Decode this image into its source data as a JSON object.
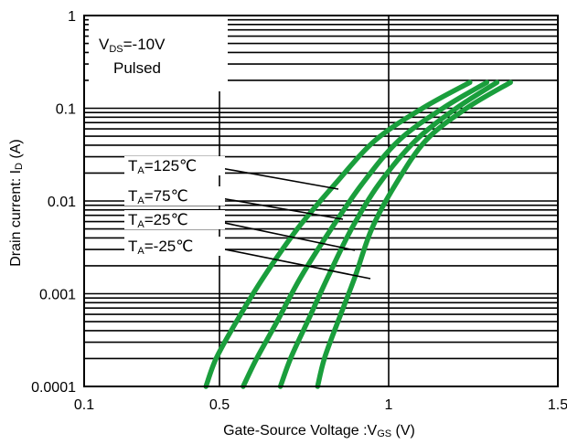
{
  "chart_data": {
    "type": "line",
    "title": "",
    "xlabel": "Gate-Source Voltage :V",
    "xlabel_sub": "GS",
    "xlabel_suffix": " (V)",
    "ylabel": "Drain current: I",
    "ylabel_sub": "D",
    "ylabel_suffix": " (A)",
    "xlim": [
      0.1,
      1.5
    ],
    "ylim": [
      0.0001,
      1
    ],
    "yscale": "log",
    "grid": true,
    "x_ticks": [
      "0.1",
      "0.5",
      "1",
      "1.5"
    ],
    "y_ticks": [
      "0.0001",
      "0.001",
      "0.01",
      "0.1",
      "1"
    ],
    "conditions": [
      {
        "prefix": "V",
        "sub": "DS",
        "text": "=-10V"
      },
      {
        "prefix": "",
        "sub": "",
        "text": "Pulsed"
      }
    ],
    "series_color": "#1a9e3c",
    "series": [
      {
        "name_prefix": "T",
        "name_sub": "A",
        "name_text": "=125℃",
        "x": [
          0.46,
          0.49,
          0.55,
          0.63,
          0.73,
          0.84,
          0.96,
          1.1,
          1.24
        ],
        "y": [
          0.0001,
          0.0002,
          0.0005,
          0.0015,
          0.005,
          0.015,
          0.045,
          0.1,
          0.19
        ]
      },
      {
        "name_prefix": "T",
        "name_sub": "A",
        "name_text": "=75℃",
        "x": [
          0.57,
          0.61,
          0.67,
          0.74,
          0.83,
          0.92,
          1.03,
          1.16,
          1.29
        ],
        "y": [
          0.0001,
          0.0002,
          0.0005,
          0.0015,
          0.005,
          0.015,
          0.045,
          0.1,
          0.19
        ]
      },
      {
        "name_prefix": "T",
        "name_sub": "A",
        "name_text": "=25℃",
        "x": [
          0.68,
          0.71,
          0.76,
          0.82,
          0.89,
          0.97,
          1.08,
          1.2,
          1.32
        ],
        "y": [
          0.0001,
          0.0002,
          0.0005,
          0.0015,
          0.005,
          0.015,
          0.045,
          0.1,
          0.19
        ]
      },
      {
        "name_prefix": "T",
        "name_sub": "A",
        "name_text": "=-25℃",
        "x": [
          0.79,
          0.81,
          0.85,
          0.9,
          0.95,
          1.02,
          1.11,
          1.23,
          1.36
        ],
        "y": [
          0.0001,
          0.0002,
          0.0005,
          0.0015,
          0.005,
          0.015,
          0.045,
          0.1,
          0.19
        ]
      }
    ]
  }
}
